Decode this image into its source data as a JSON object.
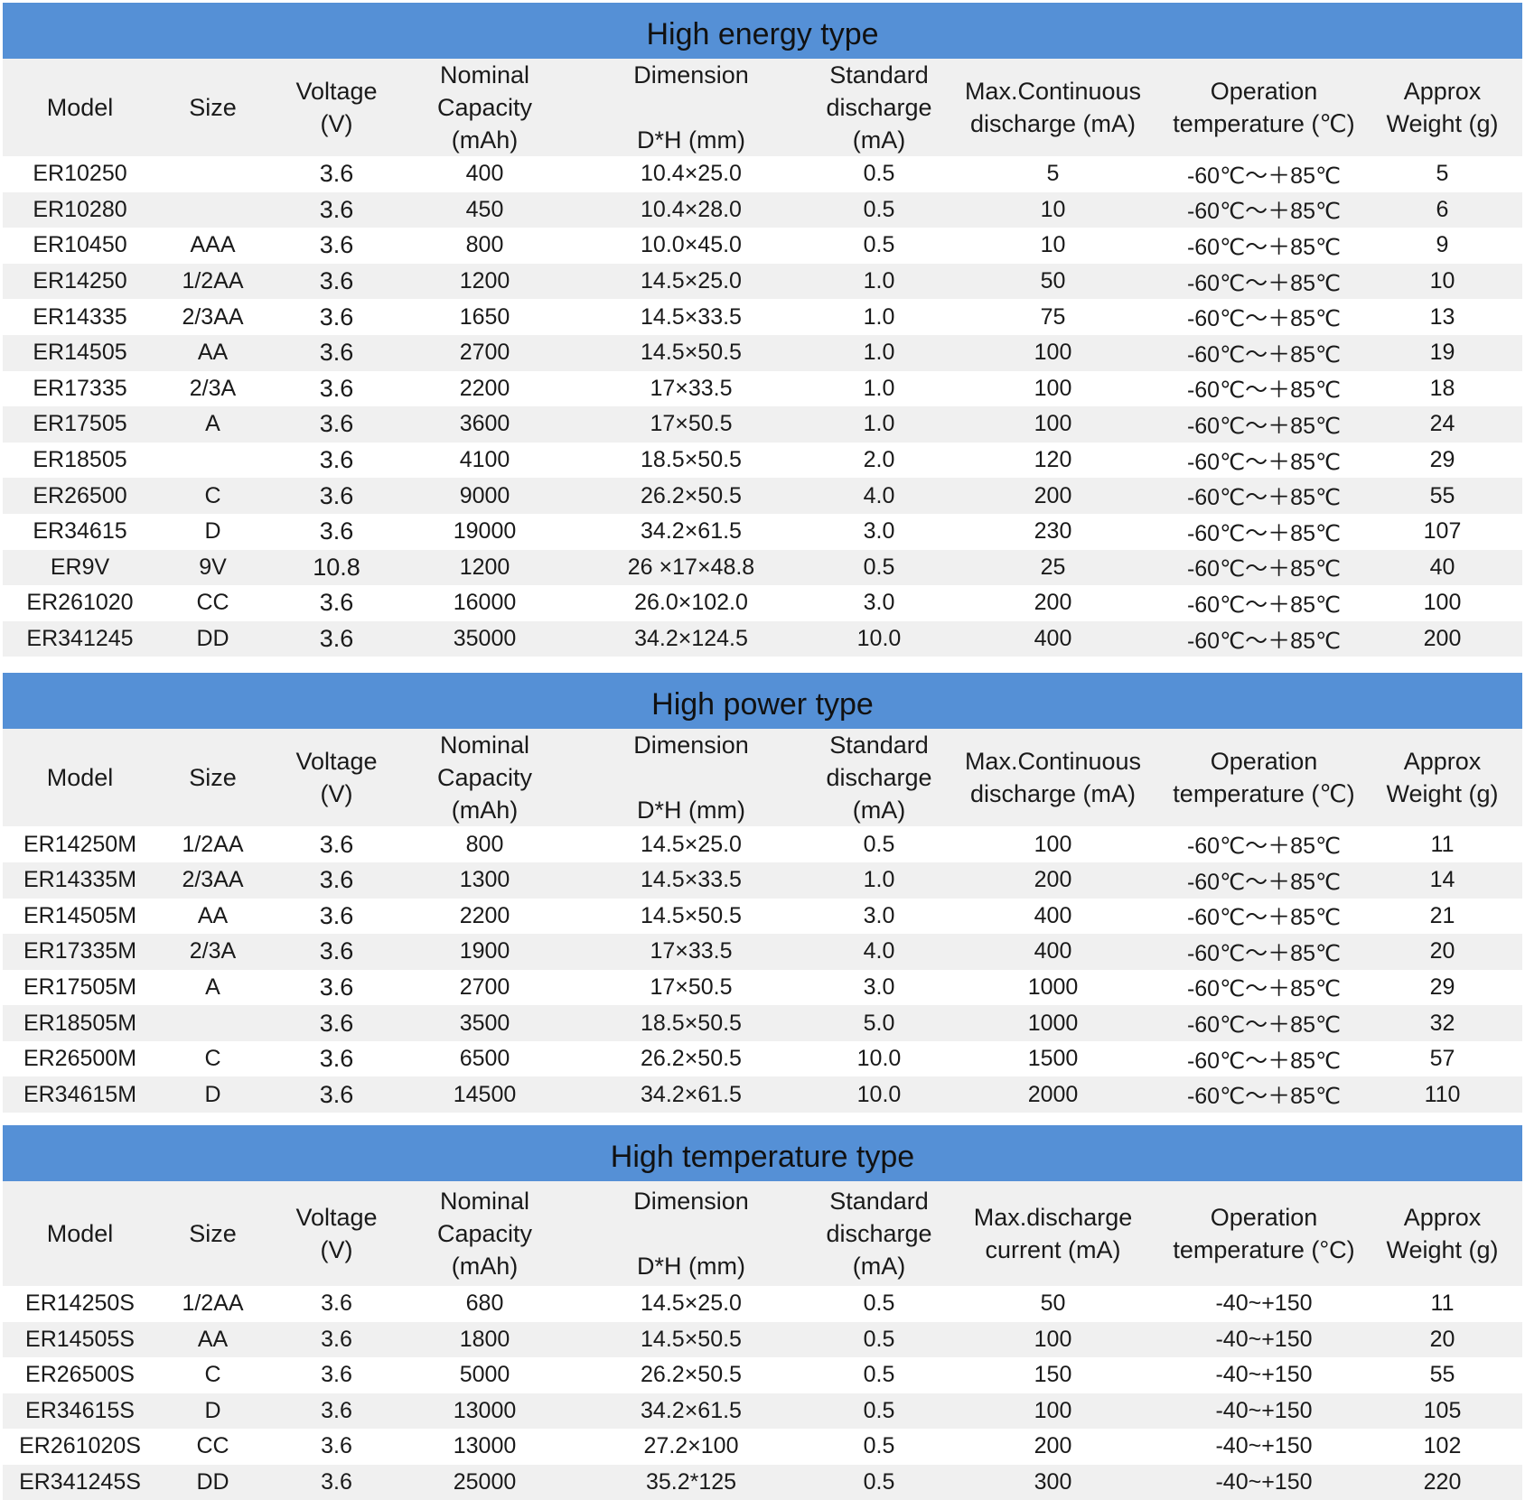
{
  "sections": [
    {
      "title": "High energy type",
      "headers": [
        "Model",
        "Size",
        "Voltage\n(V)",
        "Nominal\nCapacity\n(mAh)",
        "Dimension\n\nD*H (mm)",
        "Standard\ndischarge\n(mA)",
        "Max.Continuous\ndischarge (mA)",
        "Operation\ntemperature (℃)",
        "Approx\nWeight (g)"
      ],
      "rows": [
        [
          "ER10250",
          "",
          "3.6",
          "400",
          "10.4×25.0",
          "0.5",
          "5",
          "-60℃～＋85℃",
          "5"
        ],
        [
          "ER10280",
          "",
          "3.6",
          "450",
          "10.4×28.0",
          "0.5",
          "10",
          "-60℃～＋85℃",
          "6"
        ],
        [
          "ER10450",
          "AAA",
          "3.6",
          "800",
          "10.0×45.0",
          "0.5",
          "10",
          "-60℃～＋85℃",
          "9"
        ],
        [
          "ER14250",
          "1/2AA",
          "3.6",
          "1200",
          "14.5×25.0",
          "1.0",
          "50",
          "-60℃～＋85℃",
          "10"
        ],
        [
          "ER14335",
          "2/3AA",
          "3.6",
          "1650",
          "14.5×33.5",
          "1.0",
          "75",
          "-60℃～＋85℃",
          "13"
        ],
        [
          "ER14505",
          "AA",
          "3.6",
          "2700",
          "14.5×50.5",
          "1.0",
          "100",
          "-60℃～＋85℃",
          "19"
        ],
        [
          "ER17335",
          "2/3A",
          "3.6",
          "2200",
          "17×33.5",
          "1.0",
          "100",
          "-60℃～＋85℃",
          "18"
        ],
        [
          "ER17505",
          "A",
          "3.6",
          "3600",
          "17×50.5",
          "1.0",
          "100",
          "-60℃～＋85℃",
          "24"
        ],
        [
          "ER18505",
          "",
          "3.6",
          "4100",
          "18.5×50.5",
          "2.0",
          "120",
          "-60℃～＋85℃",
          "29"
        ],
        [
          "ER26500",
          "C",
          "3.6",
          "9000",
          "26.2×50.5",
          "4.0",
          "200",
          "-60℃～＋85℃",
          "55"
        ],
        [
          "ER34615",
          "D",
          "3.6",
          "19000",
          "34.2×61.5",
          "3.0",
          "230",
          "-60℃～＋85℃",
          "107"
        ],
        [
          "ER9V",
          "9V",
          "10.8",
          "1200",
          "26 ×17×48.8",
          "0.5",
          "25",
          "-60℃～＋85℃",
          "40"
        ],
        [
          "ER261020",
          "CC",
          "3.6",
          "16000",
          "26.0×102.0",
          "3.0",
          "200",
          "-60℃～＋85℃",
          "100"
        ],
        [
          "ER341245",
          "DD",
          "3.6",
          "35000",
          "34.2×124.5",
          "10.0",
          "400",
          "-60℃～＋85℃",
          "200"
        ]
      ]
    },
    {
      "title": "High power type",
      "headers": [
        "Model",
        "Size",
        "Voltage\n(V)",
        "Nominal\nCapacity\n(mAh)",
        "Dimension\n\nD*H (mm)",
        "Standard\ndischarge\n(mA)",
        "Max.Continuous\ndischarge (mA)",
        "Operation\ntemperature (℃)",
        "Approx\nWeight (g)"
      ],
      "rows": [
        [
          "ER14250M",
          "1/2AA",
          "3.6",
          "800",
          "14.5×25.0",
          "0.5",
          "100",
          "-60℃～＋85℃",
          "11"
        ],
        [
          "ER14335M",
          "2/3AA",
          "3.6",
          "1300",
          "14.5×33.5",
          "1.0",
          "200",
          "-60℃～＋85℃",
          "14"
        ],
        [
          "ER14505M",
          "AA",
          "3.6",
          "2200",
          "14.5×50.5",
          "3.0",
          "400",
          "-60℃～＋85℃",
          "21"
        ],
        [
          "ER17335M",
          "2/3A",
          "3.6",
          "1900",
          "17×33.5",
          "4.0",
          "400",
          "-60℃～＋85℃",
          "20"
        ],
        [
          "ER17505M",
          "A",
          "3.6",
          "2700",
          "17×50.5",
          "3.0",
          "1000",
          "-60℃～＋85℃",
          "29"
        ],
        [
          "ER18505M",
          "",
          "3.6",
          "3500",
          "18.5×50.5",
          "5.0",
          "1000",
          "-60℃～＋85℃",
          "32"
        ],
        [
          "ER26500M",
          "C",
          "3.6",
          "6500",
          "26.2×50.5",
          "10.0",
          "1500",
          "-60℃～＋85℃",
          "57"
        ],
        [
          "ER34615M",
          "D",
          "3.6",
          "14500",
          "34.2×61.5",
          "10.0",
          "2000",
          "-60℃～＋85℃",
          "110"
        ]
      ]
    },
    {
      "title": "High temperature type",
      "headers": [
        "Model",
        "Size",
        "Voltage\n(V)",
        "Nominal\nCapacity\n(mAh)",
        "Dimension\n\nD*H (mm)",
        "Standard\ndischarge\n(mA)",
        "Max.discharge\ncurrent (mA)",
        "Operation\ntemperature (°C)",
        "Approx\nWeight (g)"
      ],
      "rows": [
        [
          "ER14250S",
          "1/2AA",
          "3.6",
          "680",
          "14.5×25.0",
          "0.5",
          "50",
          "-40~+150",
          "11"
        ],
        [
          "ER14505S",
          "AA",
          "3.6",
          "1800",
          "14.5×50.5",
          "0.5",
          "100",
          "-40~+150",
          "20"
        ],
        [
          "ER26500S",
          "C",
          "3.6",
          "5000",
          "26.2×50.5",
          "0.5",
          "150",
          "-40~+150",
          "55"
        ],
        [
          "ER34615S",
          "D",
          "3.6",
          "13000",
          "34.2×61.5",
          "0.5",
          "100",
          "-40~+150",
          "105"
        ],
        [
          "ER261020S",
          "CC",
          "3.6",
          "13000",
          "27.2×100",
          "0.5",
          "200",
          "-40~+150",
          "102"
        ],
        [
          "ER341245S",
          "DD",
          "3.6",
          "25000",
          "35.2*125",
          "0.5",
          "300",
          "-40~+150",
          "220"
        ]
      ]
    }
  ]
}
